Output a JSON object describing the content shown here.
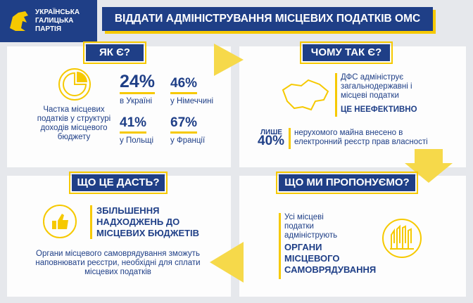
{
  "header": {
    "party": "УКРАЇНСЬКА ГАЛИЦЬКА ПАРТІЯ",
    "title": "ВІДДАТИ АДМІНІСТРУВАННЯ МІСЦЕВИХ ПОДАТКІВ ОМС"
  },
  "sections": [
    {
      "heading": "ЯК Є?",
      "caption": "Частка місцевих податків у структурі доходів місцевого бюджету",
      "stats": [
        {
          "value": "24%",
          "label": "в Україні"
        },
        {
          "value": "46%",
          "label": "у Німеччині"
        },
        {
          "value": "41%",
          "label": "у Польщі"
        },
        {
          "value": "67%",
          "label": "у Франції"
        }
      ]
    },
    {
      "heading": "ЧОМУ ТАК Є?",
      "text": "ДФС адмініструє загальнодержавні і місцеві податки",
      "emphasis": "ЦЕ НЕЕФЕКТИВНО",
      "stat_prefix": "ЛИШЕ",
      "stat_value": "40%",
      "stat_text": "нерухомого майна внесено в електронний реєстр прав власності"
    },
    {
      "heading": "ЩО ЦЕ ДАСТЬ?",
      "emphasis": "ЗБІЛЬШЕННЯ НАДХОДЖЕНЬ ДО МІСЦЕВИХ БЮДЖЕТІВ",
      "text": "Органи місцевого самоврядування зможуть наповнювати реєстри, необхідні для сплати місцевих податків"
    },
    {
      "heading": "ЩО МИ ПРОПОНУЄМО?",
      "text": "Усі місцеві податки адмініструють",
      "emphasis": "ОРГАНИ МІСЦЕВОГО САМОВРЯДУВАННЯ"
    }
  ]
}
